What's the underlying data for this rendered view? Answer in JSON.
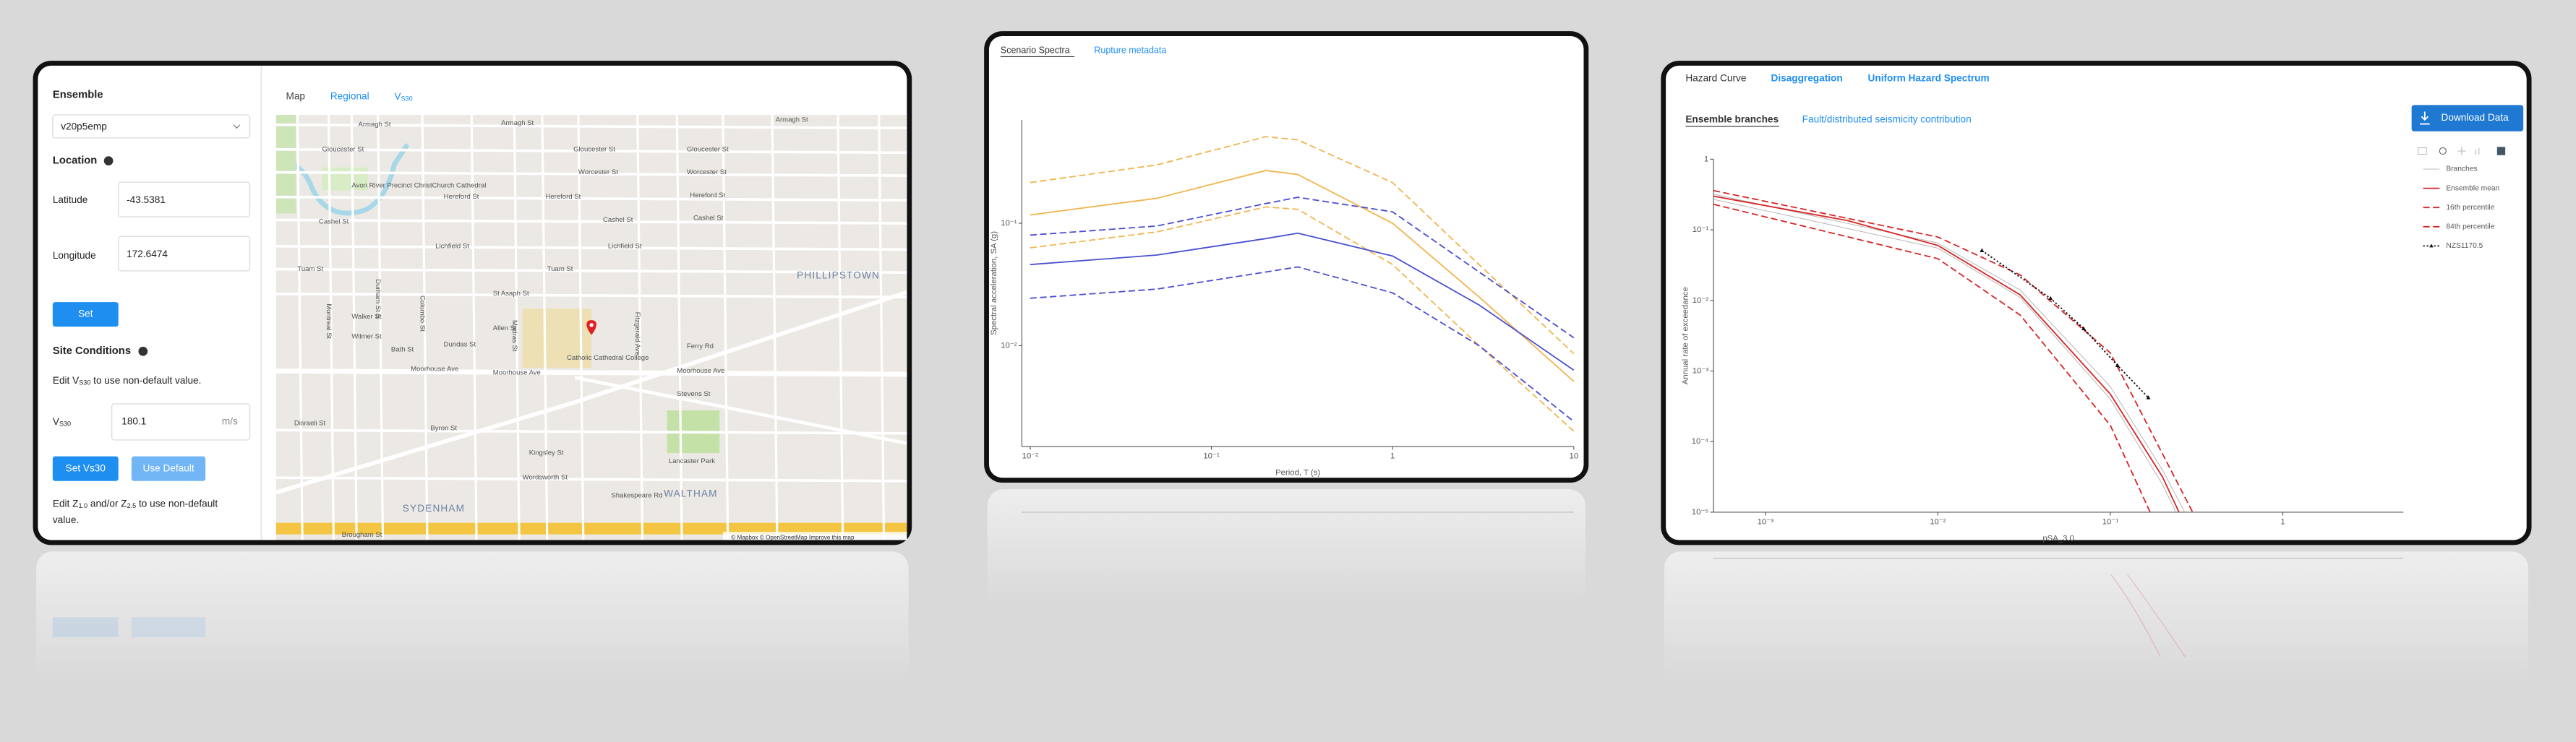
{
  "site_panel": {
    "ensemble_label": "Ensemble",
    "ensemble_value": "v20p5emp",
    "location_label": "Location",
    "latitude_label": "Latitude",
    "latitude": "-43.5381",
    "longitude_label": "Longitude",
    "longitude": "172.6474",
    "set_button": "Set",
    "site_conditions_label": "Site Conditions",
    "vs30_note": [
      "Edit V",
      "S30",
      " to use non-default value."
    ],
    "vs30_label": [
      "V",
      "S30"
    ],
    "vs30_value": "180.1",
    "vs30_unit": "m/s",
    "set_vs30_button": "Set Vs30",
    "use_default_button": "Use Default",
    "z_note": [
      [
        "Edit Z",
        "1.0",
        " and/or Z",
        "2.5",
        " to use non-default"
      ],
      [
        "value."
      ]
    ],
    "tabs": [
      [
        "Map"
      ],
      [
        "Regional"
      ],
      [
        "V",
        "S30"
      ]
    ],
    "map_labels": [
      "Armagh St",
      "Armagh St",
      "Armagh St",
      "Gloucester St",
      "Gloucester St",
      "Gloucester St",
      "Avon River Precinct",
      "ChristChurch Cathedral",
      "Worcester St",
      "Worcester St",
      "Hereford St",
      "Hereford St",
      "Hereford St",
      "Cashel St",
      "Cashel St",
      "Cashel St",
      "Lichfield St",
      "Lichfield St",
      "Tuam St",
      "Tuam St",
      "St Asaph St",
      "PHILLIPSTOWN",
      "Walker St",
      "Allen St",
      "Bath St",
      "Dundas St",
      "Wilmer St",
      "Catholic Cathedral College",
      "Moorhouse Ave",
      "Moorhouse Ave",
      "Moorhouse Ave",
      "Ferry Rd",
      "Stevens St",
      "Lancaster Park",
      "SYDENHAM",
      "WALTHAM",
      "Wordsworth St",
      "Byron St",
      "Kingsley St",
      "Brougham St",
      "Disraeli St",
      "Shakespeare Rd",
      "Montreal St",
      "Durham St S",
      "Colombo St",
      "Madras St",
      "Fitzgerald Ave"
    ],
    "map_attribution": "© Mapbox © OpenStreetMap Improve this map"
  },
  "spectra_panel": {
    "tabs": [
      "Scenario Spectra",
      "Rupture metadata"
    ],
    "chart": {
      "type": "line",
      "xlabel": "Period, T (s)",
      "ylabel": "Spectral acceleration, SA (g)",
      "xlog": true,
      "ylog": true,
      "xlim": [
        0.009,
        10
      ],
      "ylim": [
        0.0015,
        0.7
      ],
      "xticks": [
        {
          "value": 0.01,
          "label": "10⁻²"
        },
        {
          "value": 0.1,
          "label": "10⁻¹"
        },
        1,
        10
      ],
      "yticks": [
        {
          "value": 0.01,
          "label": "10⁻²"
        },
        {
          "value": 0.1,
          "label": "10⁻¹"
        }
      ],
      "x": [
        0.01,
        0.05,
        0.2,
        0.3,
        1,
        3,
        10
      ],
      "series": [
        {
          "color": "#f0b650",
          "style": "solid",
          "values": [
            0.117,
            0.16,
            0.27,
            0.25,
            0.1,
            0.025,
            0.0051
          ]
        },
        {
          "color": "#f0b650",
          "style": "dashed",
          "values": [
            0.215,
            0.3,
            0.51,
            0.48,
            0.215,
            0.046,
            0.0086
          ]
        },
        {
          "color": "#f0b650",
          "style": "dashed",
          "values": [
            0.063,
            0.085,
            0.136,
            0.13,
            0.046,
            0.01,
            0.002
          ]
        },
        {
          "color": "#4a4fd0",
          "style": "solid",
          "values": [
            0.046,
            0.055,
            0.075,
            0.083,
            0.054,
            0.0215,
            0.0063
          ]
        },
        {
          "color": "#4a4fd0",
          "style": "dashed",
          "values": [
            0.08,
            0.095,
            0.145,
            0.163,
            0.124,
            0.04,
            0.0116
          ]
        },
        {
          "color": "#4a4fd0",
          "style": "dashed",
          "values": [
            0.0244,
            0.029,
            0.04,
            0.044,
            0.027,
            0.01,
            0.0024
          ]
        }
      ]
    }
  },
  "hazard_panel": {
    "tabs": [
      "Hazard Curve",
      "Disaggregation",
      "Uniform Hazard Spectrum"
    ],
    "subtabs": [
      "Ensemble branches",
      "Fault/distributed seismicity contribution"
    ],
    "download_button": "Download Data",
    "chart": {
      "type": "line",
      "xlabel": "pSA_3.0",
      "ylabel": "Annual rate of exceedance",
      "xlog": true,
      "ylog": true,
      "legend": "right",
      "xlim": [
        0.0005,
        5
      ],
      "ylim": [
        1e-05,
        1
      ],
      "xticks": [
        {
          "value": 0.001,
          "label": "10⁻³"
        },
        {
          "value": 0.01,
          "label": "10⁻²"
        },
        {
          "value": 0.1,
          "label": "10⁻¹"
        },
        1
      ],
      "yticks": [
        {
          "value": 1e-05,
          "label": "10⁻⁵"
        },
        {
          "value": 0.0001,
          "label": "10⁻⁴"
        },
        {
          "value": 0.001,
          "label": "10⁻³"
        },
        {
          "value": 0.01,
          "label": "10⁻²"
        },
        {
          "value": 0.1,
          "label": "10⁻¹"
        },
        1
      ],
      "series": [
        {
          "name": "Branches",
          "color": "#b0b0b0",
          "style": "thin",
          "x": [
            0.0005,
            0.01,
            0.03,
            0.1,
            0.2,
            0.24
          ],
          "values": [
            0.27,
            0.055,
            0.011,
            0.0004,
            2.5e-05,
            1e-05
          ]
        },
        {
          "color": "#b0b0b0",
          "style": "thin",
          "x": [
            0.0005,
            0.01,
            0.03,
            0.1,
            0.2,
            0.27
          ],
          "values": [
            0.32,
            0.065,
            0.014,
            0.0006,
            4e-05,
            1e-05
          ]
        },
        {
          "name": "Ensemble mean",
          "color": "#d62728",
          "style": "solid",
          "x": [
            0.0005,
            0.003,
            0.01,
            0.03,
            0.1,
            0.2,
            0.25
          ],
          "values": [
            0.3,
            0.135,
            0.06,
            0.012,
            0.00047,
            3.2e-05,
            1e-05
          ]
        },
        {
          "name": "16th percentile",
          "color": "#d62728",
          "style": "dashed",
          "x": [
            0.0005,
            0.01,
            0.03,
            0.1,
            0.17
          ],
          "values": [
            0.23,
            0.039,
            0.0062,
            0.00017,
            1e-05
          ]
        },
        {
          "name": "84th percentile",
          "color": "#d62728",
          "style": "dashed",
          "x": [
            0.0005,
            0.01,
            0.03,
            0.1,
            0.3
          ],
          "values": [
            0.36,
            0.079,
            0.023,
            0.0018,
            1e-05
          ]
        },
        {
          "name": "NZS1170.5",
          "color": "#111111",
          "style": "dotted",
          "marker": "triangle",
          "x": [
            0.018,
            0.045,
            0.07,
            0.11,
            0.166
          ],
          "values": [
            0.051,
            0.0107,
            0.004,
            0.0012,
            0.00042
          ]
        }
      ]
    }
  }
}
